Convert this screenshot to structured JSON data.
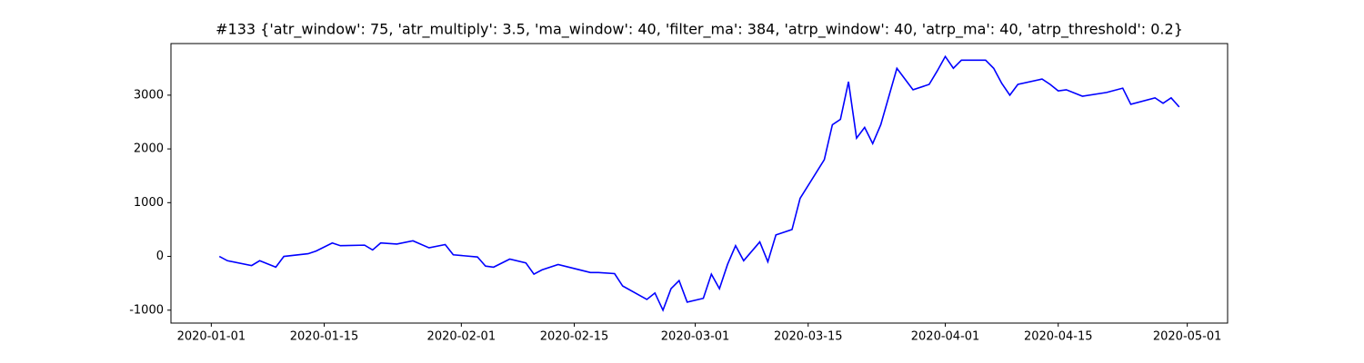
{
  "chart_data": {
    "type": "line",
    "title": "#133 {'atr_window': 75, 'atr_multiply': 3.5, 'ma_window': 40, 'filter_ma': 384, 'atrp_window': 40, 'atrp_ma': 40, 'atrp_threshold': 0.2}",
    "x": [
      "2020-01-02",
      "2020-01-03",
      "2020-01-06",
      "2020-01-07",
      "2020-01-09",
      "2020-01-10",
      "2020-01-13",
      "2020-01-14",
      "2020-01-16",
      "2020-01-17",
      "2020-01-20",
      "2020-01-21",
      "2020-01-22",
      "2020-01-24",
      "2020-01-26",
      "2020-01-28",
      "2020-01-30",
      "2020-01-31",
      "2020-02-03",
      "2020-02-04",
      "2020-02-05",
      "2020-02-07",
      "2020-02-09",
      "2020-02-10",
      "2020-02-11",
      "2020-02-13",
      "2020-02-17",
      "2020-02-18",
      "2020-02-20",
      "2020-02-21",
      "2020-02-24",
      "2020-02-25",
      "2020-02-26",
      "2020-02-27",
      "2020-02-28",
      "2020-02-29",
      "2020-03-02",
      "2020-03-03",
      "2020-03-04",
      "2020-03-05",
      "2020-03-06",
      "2020-03-07",
      "2020-03-09",
      "2020-03-10",
      "2020-03-11",
      "2020-03-13",
      "2020-03-14",
      "2020-03-17",
      "2020-03-18",
      "2020-03-19",
      "2020-03-20",
      "2020-03-21",
      "2020-03-22",
      "2020-03-23",
      "2020-03-24",
      "2020-03-26",
      "2020-03-27",
      "2020-03-28",
      "2020-03-30",
      "2020-03-31",
      "2020-04-01",
      "2020-04-02",
      "2020-04-03",
      "2020-04-06",
      "2020-04-07",
      "2020-04-08",
      "2020-04-09",
      "2020-04-10",
      "2020-04-13",
      "2020-04-14",
      "2020-04-15",
      "2020-04-16",
      "2020-04-18",
      "2020-04-21",
      "2020-04-23",
      "2020-04-24",
      "2020-04-27",
      "2020-04-28",
      "2020-04-29",
      "2020-04-30"
    ],
    "series": [
      {
        "color": "#0000ff",
        "values": [
          0,
          -80,
          -170,
          -80,
          -200,
          0,
          50,
          100,
          250,
          200,
          210,
          120,
          250,
          230,
          290,
          160,
          220,
          30,
          -10,
          -180,
          -200,
          -50,
          -120,
          -330,
          -250,
          -150,
          -300,
          -300,
          -320,
          -550,
          -800,
          -680,
          -1000,
          -600,
          -450,
          -850,
          -780,
          -330,
          -600,
          -150,
          200,
          -80,
          270,
          -100,
          400,
          500,
          1080,
          1800,
          2450,
          2550,
          3250,
          2200,
          2400,
          2100,
          2450,
          3500,
          3300,
          3100,
          3200,
          3450,
          3720,
          3500,
          3650,
          3650,
          3500,
          3220,
          3000,
          3200,
          3300,
          3200,
          3080,
          3100,
          2980,
          3050,
          3130,
          2830,
          2950,
          2850,
          2950,
          2780
        ]
      }
    ],
    "xlim": [
      "2019-12-27",
      "2020-05-06"
    ],
    "xticks": [
      "2020-01-01",
      "2020-01-15",
      "2020-02-01",
      "2020-02-15",
      "2020-03-01",
      "2020-03-15",
      "2020-04-01",
      "2020-04-15",
      "2020-05-01"
    ],
    "ylim": [
      -1240,
      3960
    ],
    "yticks": [
      -1000,
      0,
      1000,
      2000,
      3000
    ]
  }
}
